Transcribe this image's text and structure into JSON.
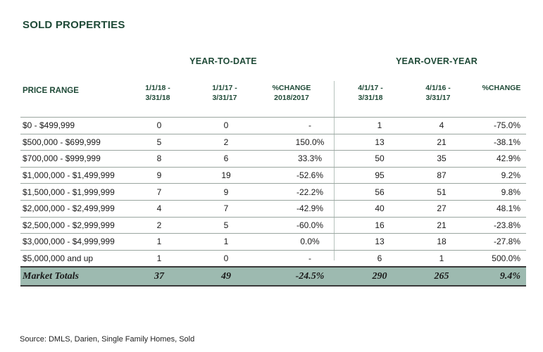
{
  "title": "SOLD PROPERTIES",
  "groups": {
    "ytd": "YEAR-TO-DATE",
    "yoy": "YEAR-OVER-YEAR"
  },
  "headers": {
    "price_range": "PRICE RANGE",
    "c1": "1/1/18 -\n3/31/18",
    "c2": "1/1/17 -\n3/31/17",
    "c3": "%CHANGE\n2018/2017",
    "c4": "4/1/17 -\n3/31/18",
    "c5": "4/1/16 -\n3/31/17",
    "c6": "%CHANGE"
  },
  "rows": [
    [
      "$0  -  $499,999",
      "0",
      "0",
      "-",
      "1",
      "4",
      "-75.0%"
    ],
    [
      "$500,000 - $699,999",
      "5",
      "2",
      "150.0%",
      "13",
      "21",
      "-38.1%"
    ],
    [
      "$700,000 - $999,999",
      "8",
      "6",
      "33.3%",
      "50",
      "35",
      "42.9%"
    ],
    [
      "$1,000,000 - $1,499,999",
      "9",
      "19",
      "-52.6%",
      "95",
      "87",
      "9.2%"
    ],
    [
      "$1,500,000 - $1,999,999",
      "7",
      "9",
      "-22.2%",
      "56",
      "51",
      "9.8%"
    ],
    [
      "$2,000,000 - $2,499,999",
      "4",
      "7",
      "-42.9%",
      "40",
      "27",
      "48.1%"
    ],
    [
      "$2,500,000 - $2,999,999",
      "2",
      "5",
      "-60.0%",
      "16",
      "21",
      "-23.8%"
    ],
    [
      "$3,000,000 - $4,999,999",
      "1",
      "1",
      "0.0%",
      "13",
      "18",
      "-27.8%"
    ],
    [
      "$5,000,000 and up",
      "1",
      "0",
      "-",
      "6",
      "1",
      "500.0%"
    ]
  ],
  "totals": [
    "Market Totals",
    "37",
    "49",
    "-24.5%",
    "290",
    "265",
    "9.4%"
  ],
  "source": "Source: DMLS, Darien, Single Family Homes, Sold"
}
